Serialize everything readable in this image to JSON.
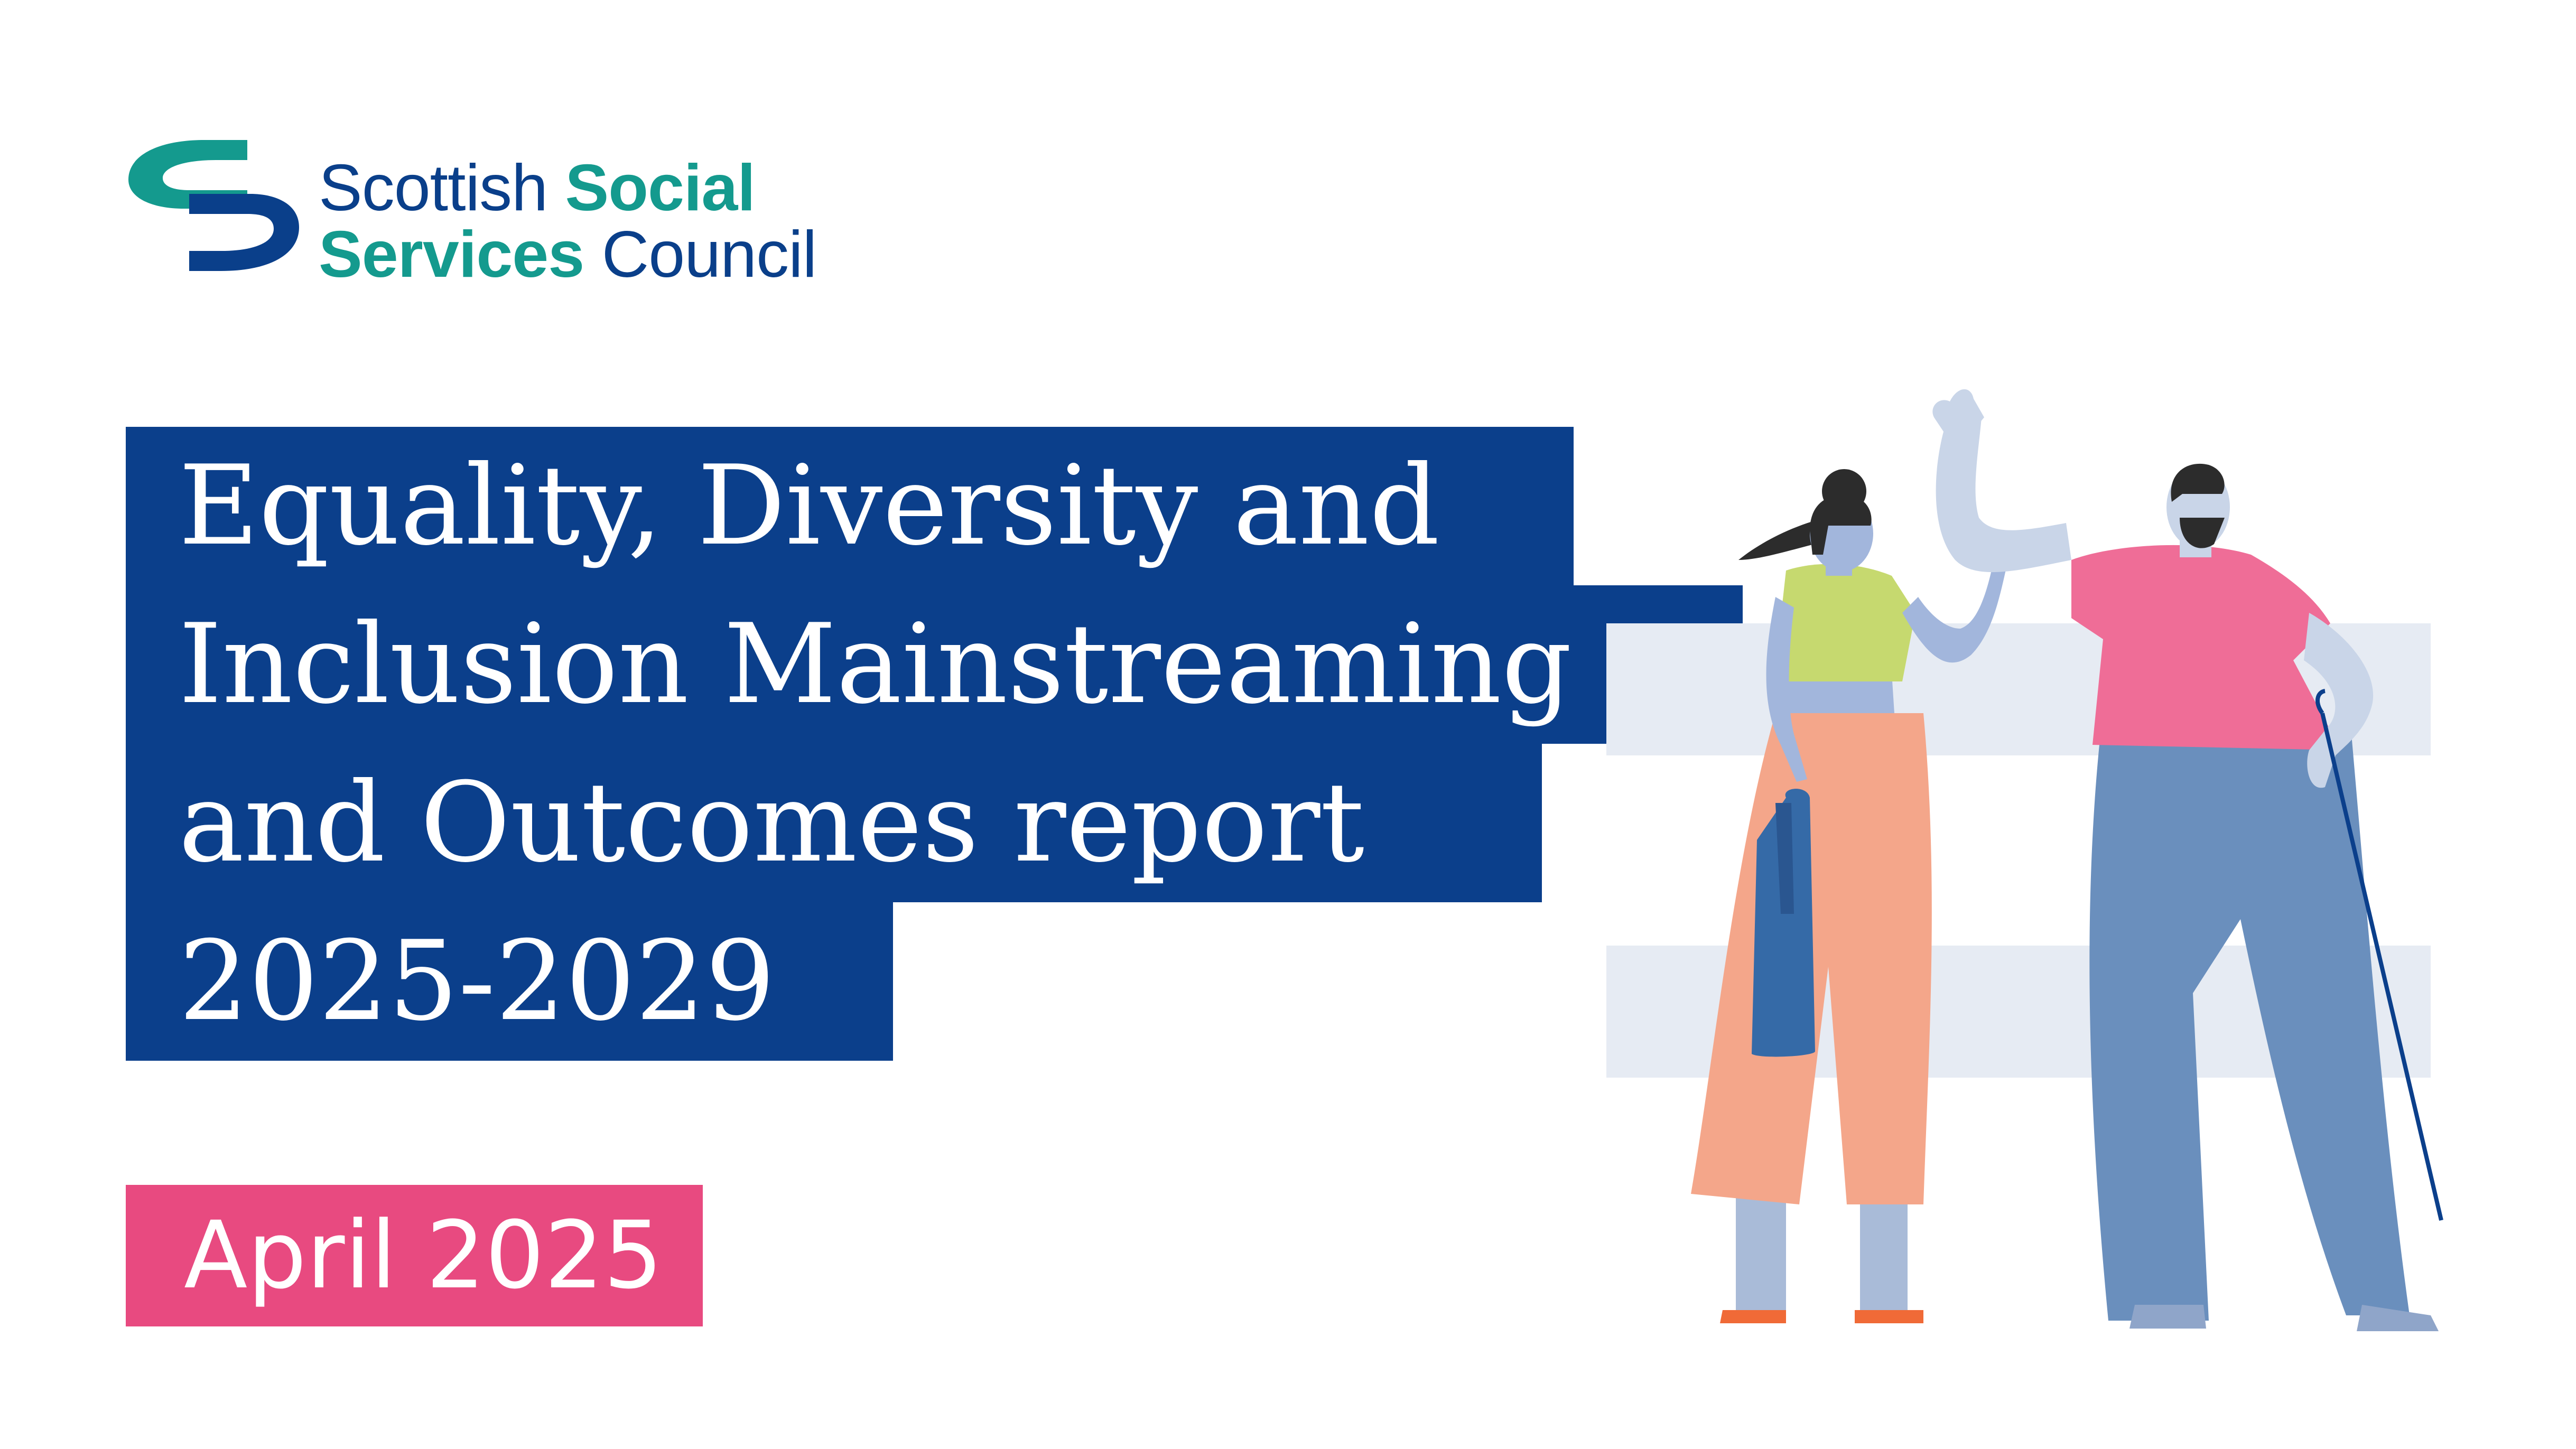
{
  "organisation": {
    "name_line1_part1": "Scottish",
    "name_line1_part2": "Social",
    "name_line2_part1": "Services",
    "name_line2_part2": "Council",
    "logo_icon": "sssc-logo-icon"
  },
  "title": {
    "line1": "Equality, Diversity and",
    "line2": "Inclusion Mainstreaming",
    "line3": "and Outcomes report",
    "line4": "2025-2029"
  },
  "date": "April 2025",
  "colors": {
    "navy": "#0b3f8b",
    "teal": "#149a8e",
    "pink": "#e84a80"
  }
}
